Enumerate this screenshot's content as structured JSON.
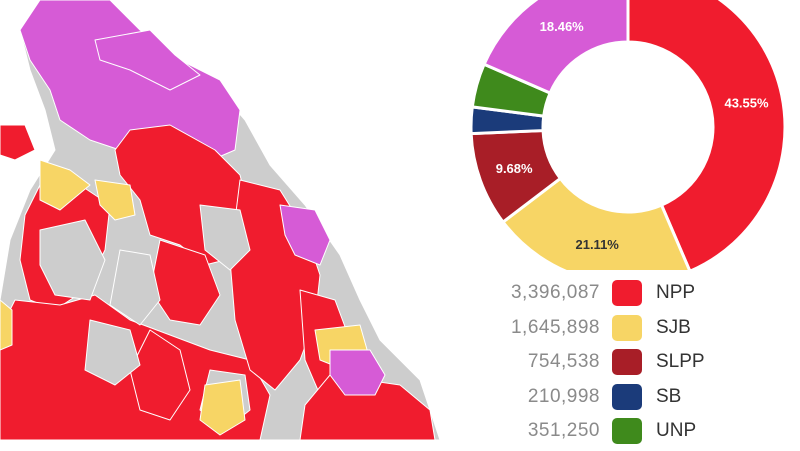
{
  "chart_data": {
    "type": "pie",
    "donut": true,
    "slices": [
      {
        "party": "NPP",
        "percent": 43.55,
        "label": "43.55%",
        "votes": "3,396,087",
        "color": "#f01c2e",
        "label_color": "#ffffff"
      },
      {
        "party": "SJB",
        "percent": 21.11,
        "label": "21.11%",
        "votes": "1,645,898",
        "color": "#f7d565",
        "label_color": "#333333"
      },
      {
        "party": "SLPP",
        "percent": 9.68,
        "label": "9.68%",
        "votes": "754,538",
        "color": "#a81e27",
        "label_color": "#ffffff"
      },
      {
        "party": "SB",
        "percent": 2.71,
        "label": "",
        "votes": "210,998",
        "color": "#1b3b7a",
        "label_color": "#ffffff"
      },
      {
        "party": "UNP",
        "percent": 4.5,
        "label": "",
        "votes": "351,250",
        "color": "#3f8a1c",
        "label_color": "#ffffff"
      },
      {
        "party": "",
        "percent": 18.46,
        "label": "18.46%",
        "votes": "",
        "color": "#d65bd6",
        "label_color": "#ffffff"
      }
    ],
    "legend": [
      {
        "votes": "3,396,087",
        "party": "NPP",
        "color": "#f01c2e"
      },
      {
        "votes": "1,645,898",
        "party": "SJB",
        "color": "#f7d565"
      },
      {
        "votes": "754,538",
        "party": "SLPP",
        "color": "#a81e27"
      },
      {
        "votes": "210,998",
        "party": "SB",
        "color": "#1b3b7a"
      },
      {
        "votes": "351,250",
        "party": "UNP",
        "color": "#3f8a1c"
      }
    ]
  },
  "map": {
    "colors": {
      "sea": "#ffffff",
      "land_other": "#cdcdcd",
      "npp": "#f01c2e",
      "sjb": "#f7d565",
      "itak": "#d65bd6"
    }
  }
}
